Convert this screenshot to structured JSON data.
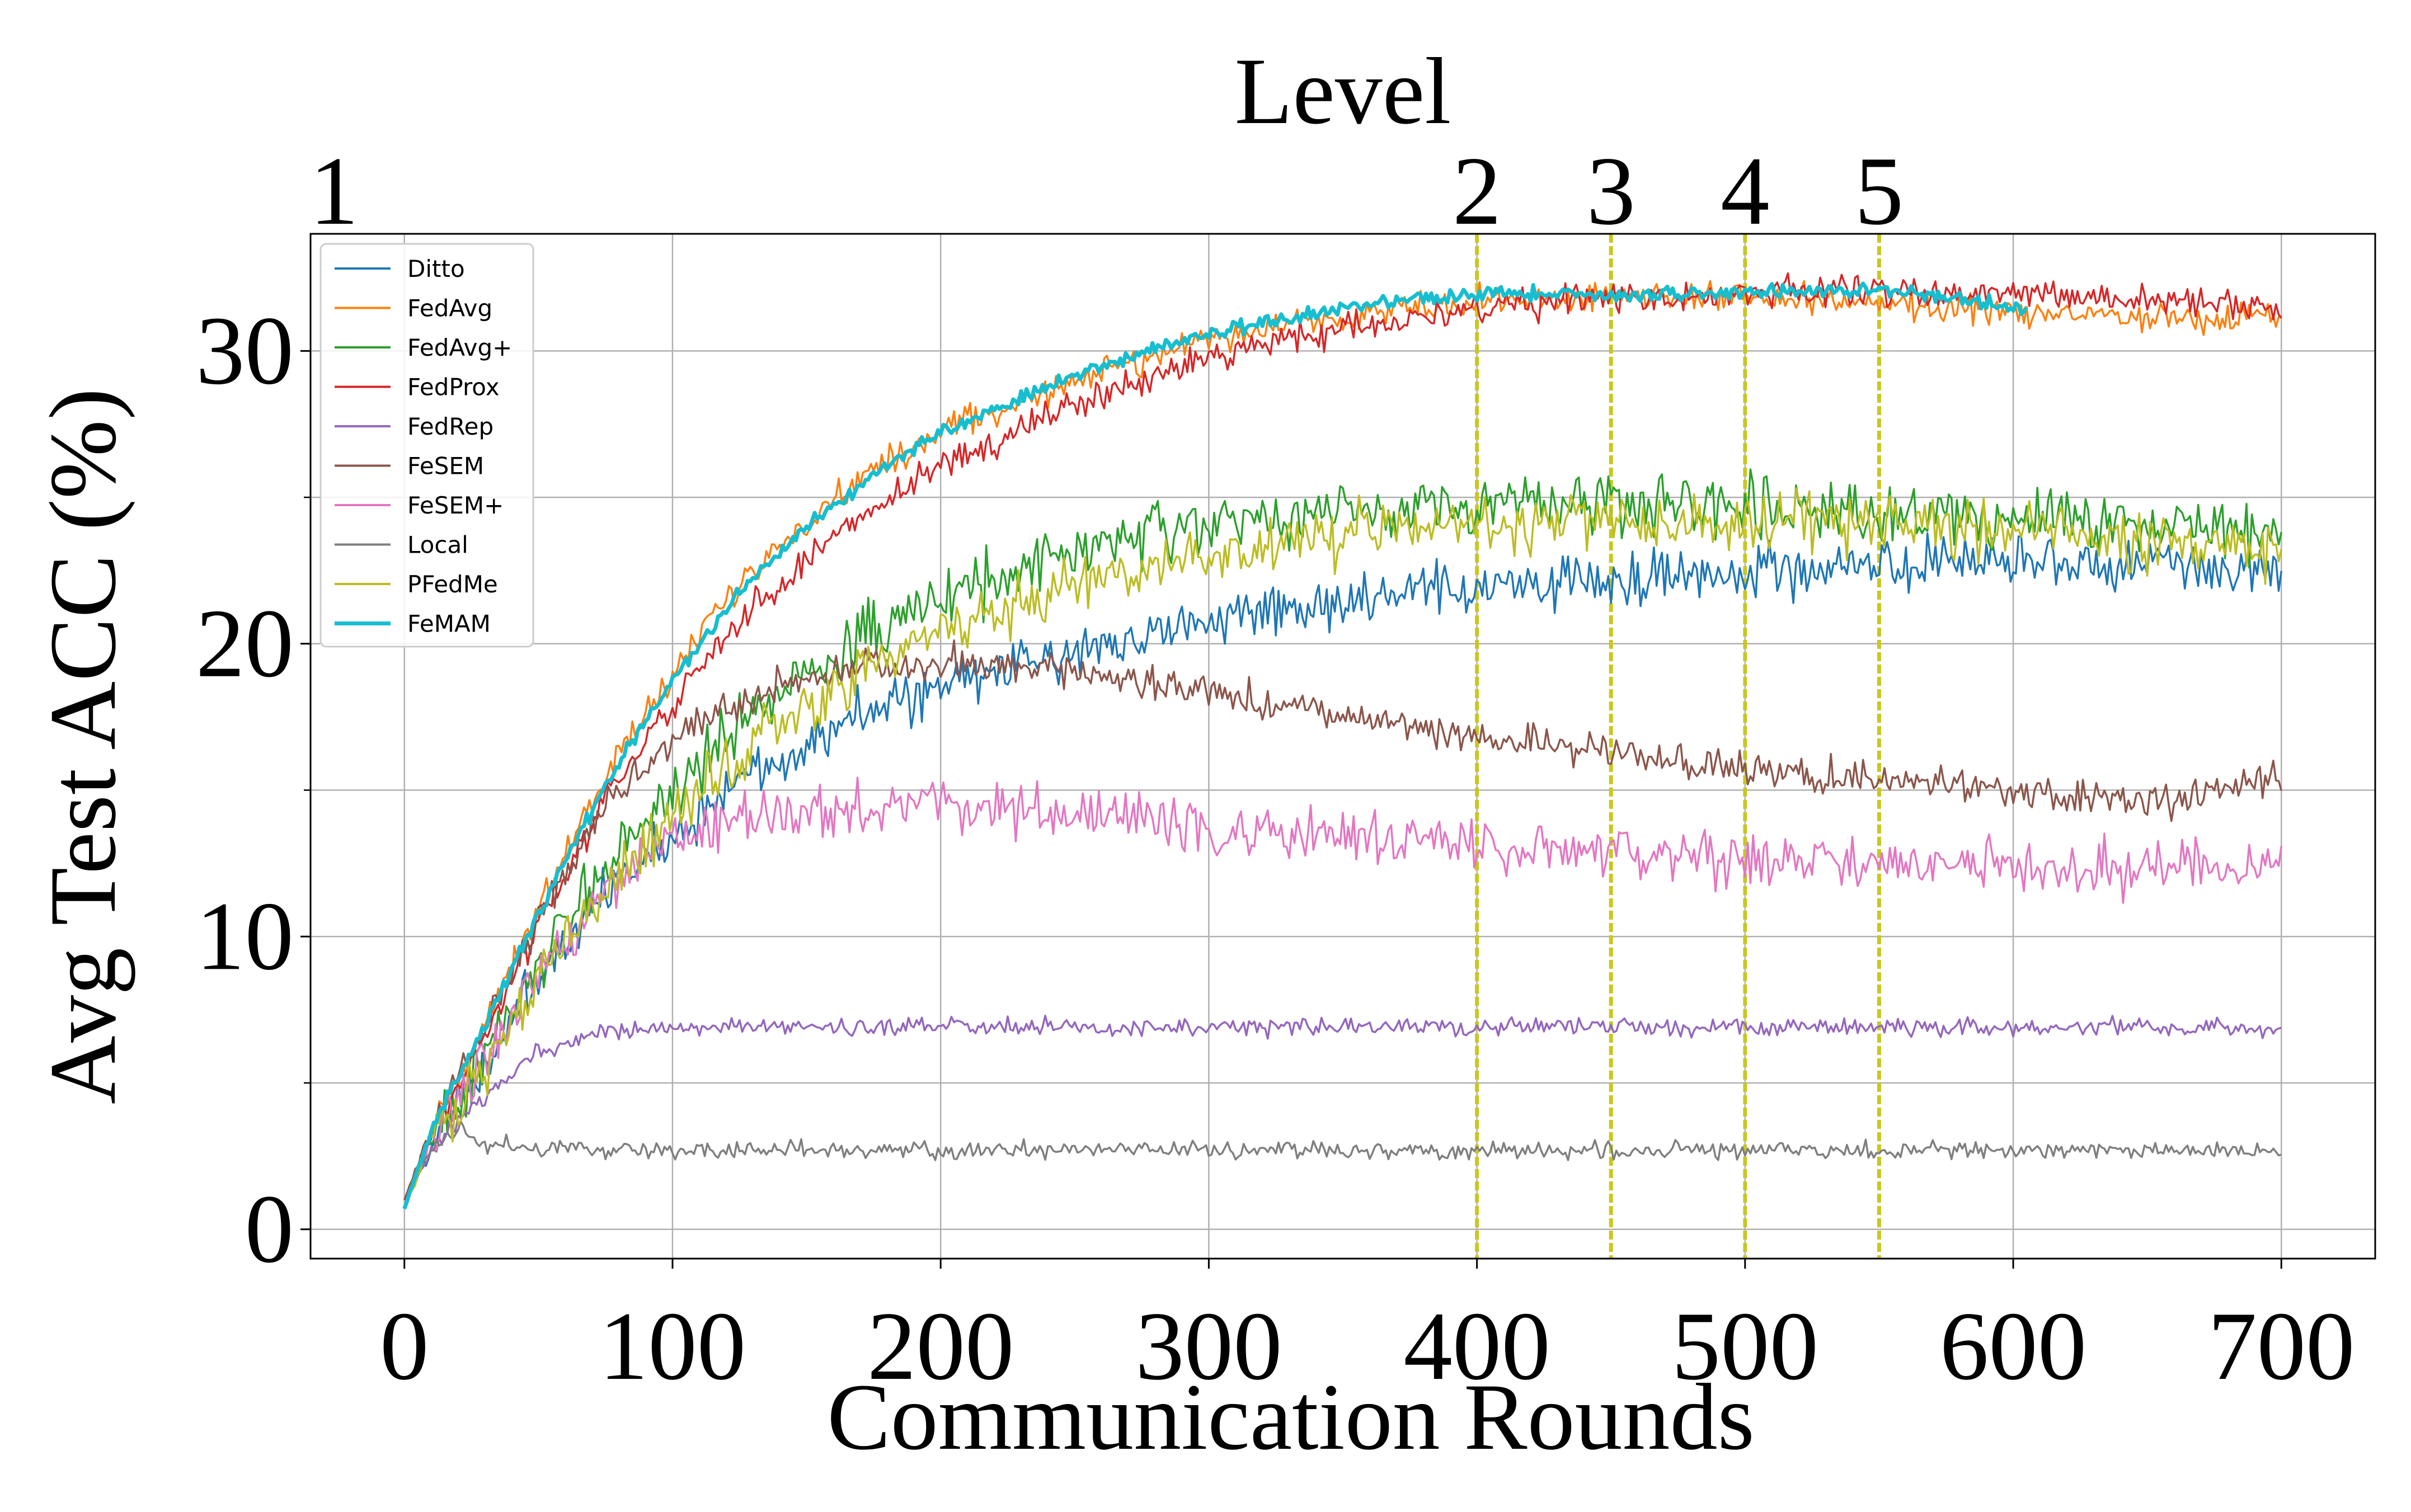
{
  "chart_data": {
    "type": "line",
    "top_axis_label": "Level",
    "xlabel": "Communication Rounds",
    "ylabel": "Avg Test ACC (%)",
    "xlim": [
      -35,
      735
    ],
    "ylim": [
      -1,
      34
    ],
    "x_ticks": [
      0,
      100,
      200,
      300,
      400,
      500,
      600,
      700
    ],
    "x_tick_labels": [
      "0",
      "100",
      "200",
      "300",
      "400",
      "500",
      "600",
      "700"
    ],
    "y_ticks": [
      0,
      10,
      20,
      30
    ],
    "y_tick_labels": [
      "0",
      "10",
      "20",
      "30"
    ],
    "y_minor_ticks": [
      5,
      15,
      25
    ],
    "grid": true,
    "legend_position": "top-left",
    "levels": [
      {
        "label": "1",
        "x": 0,
        "line": false
      },
      {
        "label": "2",
        "x": 400,
        "line": true
      },
      {
        "label": "3",
        "x": 450,
        "line": true
      },
      {
        "label": "4",
        "x": 500,
        "line": true
      },
      {
        "label": "5",
        "x": 550,
        "line": true
      }
    ],
    "level_line_color": "#c8c81e",
    "series": [
      {
        "name": "Ditto",
        "color": "#1f77b4",
        "x": [
          0,
          10,
          25,
          50,
          75,
          100,
          125,
          150,
          175,
          200,
          250,
          300,
          350,
          400,
          450,
          500,
          550,
          600,
          650,
          700
        ],
        "values": [
          1.0,
          3.0,
          5.0,
          8.5,
          11.5,
          13.5,
          15.3,
          16.7,
          17.7,
          18.5,
          19.8,
          20.8,
          21.4,
          21.9,
          22.2,
          22.5,
          22.6,
          22.7,
          22.7,
          22.6
        ],
        "noise": 0.45
      },
      {
        "name": "FedAvg",
        "color": "#ff7f0e",
        "x": [
          0,
          10,
          25,
          50,
          75,
          100,
          125,
          150,
          175,
          200,
          250,
          300,
          350,
          400,
          450,
          500,
          550,
          600,
          650,
          700
        ],
        "values": [
          1.0,
          3.4,
          6.0,
          11.0,
          15.5,
          19.0,
          22.0,
          24.2,
          26.0,
          27.2,
          29.0,
          30.4,
          31.2,
          31.7,
          31.9,
          31.8,
          31.6,
          31.3,
          31.2,
          31.0
        ],
        "noise": 0.25
      },
      {
        "name": "FedAvg+",
        "color": "#2ca02c",
        "x": [
          0,
          10,
          25,
          50,
          75,
          100,
          125,
          150,
          175,
          200,
          250,
          300,
          350,
          400,
          450,
          500,
          550,
          600,
          650,
          700
        ],
        "values": [
          0.8,
          3.0,
          5.0,
          9.0,
          12.5,
          15.0,
          17.2,
          19.0,
          20.5,
          21.5,
          23.2,
          24.0,
          24.5,
          24.8,
          24.9,
          24.8,
          24.5,
          24.3,
          24.1,
          23.9
        ],
        "noise": 0.5
      },
      {
        "name": "FedProx",
        "color": "#d62728",
        "x": [
          0,
          10,
          25,
          50,
          75,
          100,
          125,
          150,
          175,
          200,
          250,
          300,
          350,
          400,
          450,
          500,
          550,
          600,
          650,
          700
        ],
        "values": [
          1.0,
          3.2,
          5.6,
          10.5,
          14.7,
          18.0,
          20.8,
          22.9,
          24.6,
          26.0,
          28.2,
          29.8,
          30.8,
          31.4,
          31.8,
          32.0,
          32.1,
          32.0,
          31.8,
          31.4
        ],
        "noise": 0.25
      },
      {
        "name": "FedRep",
        "color": "#9467bd",
        "x": [
          0,
          10,
          25,
          50,
          75,
          100,
          150,
          200,
          300,
          400,
          500,
          600,
          700
        ],
        "values": [
          1.0,
          2.6,
          4.2,
          6.0,
          6.8,
          6.9,
          6.9,
          6.9,
          6.9,
          6.9,
          6.9,
          6.9,
          6.9
        ],
        "noise": 0.15
      },
      {
        "name": "FeSEM",
        "color": "#8c564b",
        "x": [
          0,
          10,
          25,
          50,
          75,
          100,
          125,
          150,
          175,
          200,
          250,
          300,
          350,
          400,
          450,
          500,
          550,
          600,
          650,
          700
        ],
        "values": [
          1.0,
          3.4,
          6.0,
          10.5,
          14.5,
          16.8,
          18.0,
          18.8,
          19.2,
          19.3,
          19.1,
          18.3,
          17.5,
          16.8,
          16.3,
          15.7,
          15.4,
          15.0,
          14.6,
          15.3
        ],
        "noise": 0.3
      },
      {
        "name": "FeSEM+",
        "color": "#e377c2",
        "x": [
          0,
          10,
          25,
          50,
          75,
          100,
          125,
          150,
          175,
          200,
          250,
          300,
          350,
          400,
          450,
          500,
          550,
          600,
          650,
          700
        ],
        "values": [
          0.8,
          3.0,
          5.0,
          8.5,
          11.5,
          13.2,
          14.0,
          14.3,
          14.4,
          14.4,
          14.2,
          13.8,
          13.4,
          13.1,
          12.9,
          12.6,
          12.5,
          12.4,
          12.3,
          12.2
        ],
        "noise": 0.45
      },
      {
        "name": "Local",
        "color": "#7f7f7f",
        "x": [
          0,
          10,
          20,
          30,
          50,
          75,
          100,
          200,
          300,
          400,
          500,
          600,
          700
        ],
        "values": [
          0.8,
          2.8,
          3.4,
          3.0,
          2.8,
          2.7,
          2.7,
          2.7,
          2.7,
          2.7,
          2.7,
          2.7,
          2.7
        ],
        "noise": 0.15
      },
      {
        "name": "PFedMe",
        "color": "#bcbd22",
        "x": [
          0,
          10,
          25,
          50,
          75,
          100,
          125,
          150,
          175,
          200,
          250,
          300,
          350,
          400,
          450,
          500,
          550,
          600,
          650,
          700
        ],
        "values": [
          0.8,
          2.8,
          4.8,
          8.5,
          11.8,
          14.2,
          16.2,
          18.0,
          19.3,
          20.3,
          22.0,
          23.1,
          23.8,
          24.1,
          24.2,
          24.2,
          24.1,
          23.9,
          23.5,
          23.2
        ],
        "noise": 0.5
      },
      {
        "name": "FeMAM",
        "color": "#17becf",
        "x": [
          0,
          10,
          25,
          50,
          75,
          100,
          125,
          150,
          175,
          200,
          250,
          300,
          350,
          400,
          450,
          500,
          550,
          600,
          605
        ],
        "values": [
          0.7,
          3.4,
          6.0,
          10.8,
          15.2,
          18.8,
          21.8,
          24.0,
          25.8,
          27.2,
          29.2,
          30.6,
          31.5,
          32.0,
          31.9,
          32.0,
          32.1,
          31.5,
          31.4
        ],
        "noise": 0.12,
        "thick": true
      }
    ]
  }
}
